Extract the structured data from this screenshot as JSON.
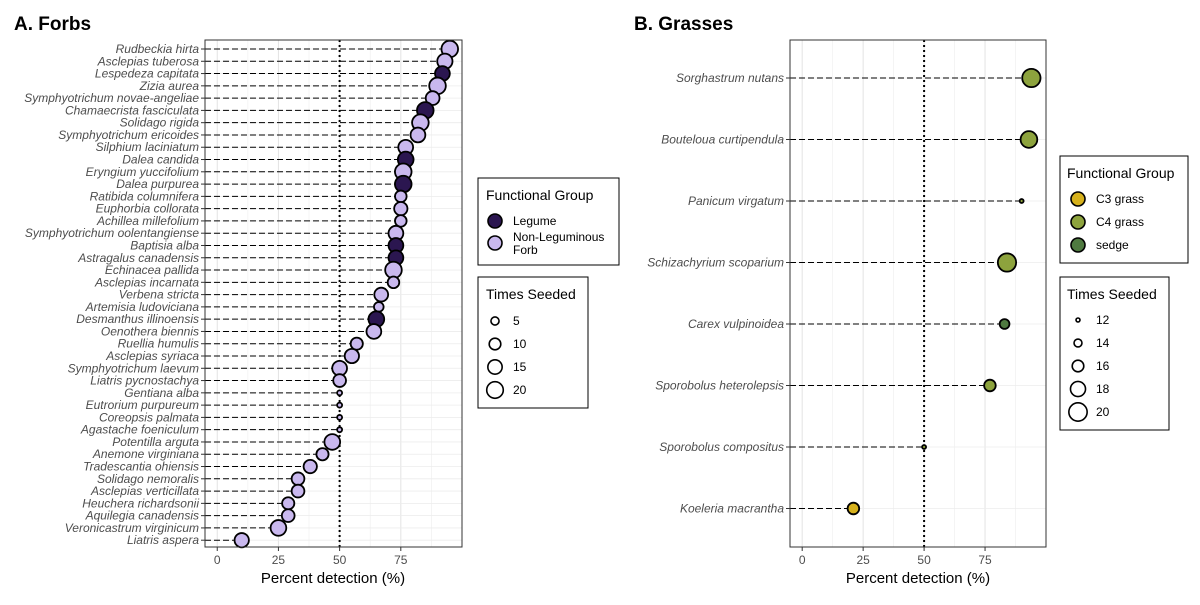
{
  "chart_data": [
    {
      "type": "scatter",
      "title": "A. Forbs",
      "xlabel": "Percent detection (%)",
      "ylabel": "",
      "xlim": [
        -5,
        100
      ],
      "xticks": [
        0,
        25,
        50,
        75
      ],
      "reference_line_x": 50,
      "grid": true,
      "colors": {
        "Legume": "#2b1650",
        "Non-Leguminous Forb": "#c9b8ee"
      },
      "species": [
        {
          "name": "Rudbeckia hirta",
          "x": 95,
          "group": "Non-Leguminous Forb",
          "seeded": 20
        },
        {
          "name": "Asclepias tuberosa",
          "x": 93,
          "group": "Non-Leguminous Forb",
          "seeded": 17
        },
        {
          "name": "Lespedeza capitata",
          "x": 92,
          "group": "Legume",
          "seeded": 16
        },
        {
          "name": "Zizia aurea",
          "x": 90,
          "group": "Non-Leguminous Forb",
          "seeded": 20
        },
        {
          "name": "Symphyotrichum novae-angeliae",
          "x": 88,
          "group": "Non-Leguminous Forb",
          "seeded": 14
        },
        {
          "name": "Chamaecrista fasciculata",
          "x": 85,
          "group": "Legume",
          "seeded": 20
        },
        {
          "name": "Solidago rigida",
          "x": 83,
          "group": "Non-Leguminous Forb",
          "seeded": 20
        },
        {
          "name": "Symphyotrichum ericoides",
          "x": 82,
          "group": "Non-Leguminous Forb",
          "seeded": 16
        },
        {
          "name": "Silphium laciniatum",
          "x": 77,
          "group": "Non-Leguminous Forb",
          "seeded": 16
        },
        {
          "name": "Dalea candida",
          "x": 77,
          "group": "Legume",
          "seeded": 18
        },
        {
          "name": "Eryngium yuccifolium",
          "x": 76,
          "group": "Non-Leguminous Forb",
          "seeded": 20
        },
        {
          "name": "Dalea purpurea",
          "x": 76,
          "group": "Legume",
          "seeded": 20
        },
        {
          "name": "Ratibida columnifera",
          "x": 75,
          "group": "Non-Leguminous Forb",
          "seeded": 10
        },
        {
          "name": "Euphorbia collorata",
          "x": 75,
          "group": "Non-Leguminous Forb",
          "seeded": 13
        },
        {
          "name": "Achillea millefolium",
          "x": 75,
          "group": "Non-Leguminous Forb",
          "seeded": 10
        },
        {
          "name": "Symphyotrichum oolentangiense",
          "x": 73,
          "group": "Non-Leguminous Forb",
          "seeded": 16
        },
        {
          "name": "Baptisia alba",
          "x": 73,
          "group": "Legume",
          "seeded": 16
        },
        {
          "name": "Astragalus canadensis",
          "x": 73,
          "group": "Legume",
          "seeded": 16
        },
        {
          "name": "Echinacea pallida",
          "x": 72,
          "group": "Non-Leguminous Forb",
          "seeded": 20
        },
        {
          "name": "Asclepias incarnata",
          "x": 72,
          "group": "Non-Leguminous Forb",
          "seeded": 10
        },
        {
          "name": "Verbena stricta",
          "x": 67,
          "group": "Non-Leguminous Forb",
          "seeded": 14
        },
        {
          "name": "Artemisia ludoviciana",
          "x": 66,
          "group": "Non-Leguminous Forb",
          "seeded": 7
        },
        {
          "name": "Desmanthus illinoensis",
          "x": 65,
          "group": "Legume",
          "seeded": 18
        },
        {
          "name": "Oenothera biennis",
          "x": 64,
          "group": "Non-Leguminous Forb",
          "seeded": 16
        },
        {
          "name": "Ruellia humulis",
          "x": 57,
          "group": "Non-Leguminous Forb",
          "seeded": 11
        },
        {
          "name": "Asclepias syriaca",
          "x": 55,
          "group": "Non-Leguminous Forb",
          "seeded": 15
        },
        {
          "name": "Symphyotrichum laevum",
          "x": 50,
          "group": "Non-Leguminous Forb",
          "seeded": 16
        },
        {
          "name": "Liatris pycnostachya",
          "x": 50,
          "group": "Non-Leguminous Forb",
          "seeded": 12
        },
        {
          "name": "Gentiana alba",
          "x": 50,
          "group": "Non-Leguminous Forb",
          "seeded": 2
        },
        {
          "name": "Eutrorium purpureum",
          "x": 50,
          "group": "Non-Leguminous Forb",
          "seeded": 2
        },
        {
          "name": "Coreopsis palmata",
          "x": 50,
          "group": "Non-Leguminous Forb",
          "seeded": 2
        },
        {
          "name": "Agastache foeniculum",
          "x": 50,
          "group": "Non-Leguminous Forb",
          "seeded": 2
        },
        {
          "name": "Potentilla arguta",
          "x": 47,
          "group": "Non-Leguminous Forb",
          "seeded": 18
        },
        {
          "name": "Anemone virginiana",
          "x": 43,
          "group": "Non-Leguminous Forb",
          "seeded": 11
        },
        {
          "name": "Tradescantia ohiensis",
          "x": 38,
          "group": "Non-Leguminous Forb",
          "seeded": 13
        },
        {
          "name": "Solidago nemoralis",
          "x": 33,
          "group": "Non-Leguminous Forb",
          "seeded": 12
        },
        {
          "name": "Asclepias verticillata",
          "x": 33,
          "group": "Non-Leguminous Forb",
          "seeded": 12
        },
        {
          "name": "Heuchera richardsonii",
          "x": 29,
          "group": "Non-Leguminous Forb",
          "seeded": 11
        },
        {
          "name": "Aquilegia canadensis",
          "x": 29,
          "group": "Non-Leguminous Forb",
          "seeded": 12
        },
        {
          "name": "Veronicastrum virginicum",
          "x": 25,
          "group": "Non-Leguminous Forb",
          "seeded": 18
        },
        {
          "name": "Liatris aspera",
          "x": 10,
          "group": "Non-Leguminous Forb",
          "seeded": 15
        }
      ],
      "legend_group": {
        "title": "Functional Group",
        "items": [
          "Legume",
          "Non-Leguminous Forb"
        ]
      },
      "legend_size": {
        "title": "Times Seeded",
        "values": [
          5,
          10,
          15,
          20
        ]
      }
    },
    {
      "type": "scatter",
      "title": "B. Grasses",
      "xlabel": "Percent detection (%)",
      "ylabel": "",
      "xlim": [
        -5,
        100
      ],
      "xticks": [
        0,
        25,
        50,
        75
      ],
      "reference_line_x": 50,
      "grid": true,
      "colors": {
        "C3 grass": "#d6b11c",
        "C4 grass": "#8da33d",
        "sedge": "#4f7a40"
      },
      "species": [
        {
          "name": "Sorghastrum nutans",
          "x": 94,
          "group": "C4 grass",
          "seeded": 20
        },
        {
          "name": "Bouteloua curtipendula",
          "x": 93,
          "group": "C4 grass",
          "seeded": 19
        },
        {
          "name": "Panicum virgatum",
          "x": 90,
          "group": "C4 grass",
          "seeded": 12
        },
        {
          "name": "Schizachyrium scoparium",
          "x": 84,
          "group": "C4 grass",
          "seeded": 20
        },
        {
          "name": "Carex vulpinoidea",
          "x": 83,
          "group": "sedge",
          "seeded": 15
        },
        {
          "name": "Sporobolus heterolepsis",
          "x": 77,
          "group": "C4 grass",
          "seeded": 16
        },
        {
          "name": "Sporobolus compositus",
          "x": 50,
          "group": "C4 grass",
          "seeded": 12
        },
        {
          "name": "Koeleria macrantha",
          "x": 21,
          "group": "C3 grass",
          "seeded": 16
        }
      ],
      "legend_group": {
        "title": "Functional Group",
        "items": [
          "C3 grass",
          "C4 grass",
          "sedge"
        ]
      },
      "legend_size": {
        "title": "Times Seeded",
        "values": [
          12,
          14,
          16,
          18,
          20
        ]
      }
    }
  ]
}
